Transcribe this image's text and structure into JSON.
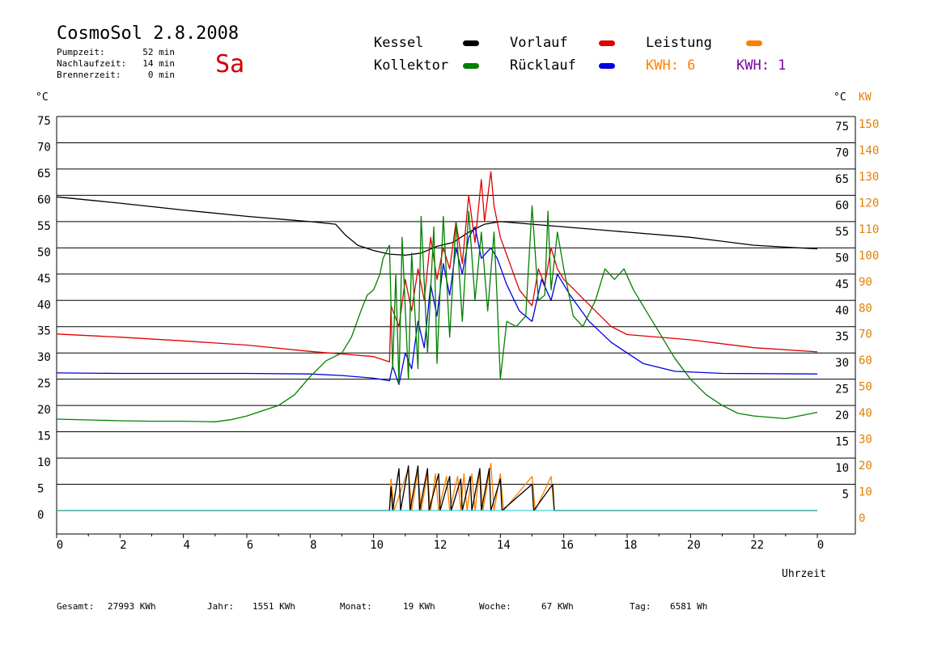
{
  "header": {
    "title": "CosmoSol 2.8.2008",
    "day": "Sa",
    "meta": [
      {
        "label": "Pumpzeit:",
        "value": "52 min"
      },
      {
        "label": "Nachlaufzeit:",
        "value": "14 min"
      },
      {
        "label": "Brennerzeit:",
        "value": "0 min"
      }
    ]
  },
  "legend": {
    "kessel": {
      "label": "Kessel",
      "color": "#000000"
    },
    "vorlauf": {
      "label": "Vorlauf",
      "color": "#e00000"
    },
    "leistung": {
      "label": "Leistung",
      "color": "#ff8000"
    },
    "kollektor": {
      "label": "Kollektor",
      "color": "#008000"
    },
    "ruecklauf": {
      "label": "Rücklauf",
      "color": "#0000e0"
    },
    "kwh_orange": "KWH: 6",
    "kwh_purple": "KWH: 1"
  },
  "units": {
    "left": "°C",
    "right_c": "°C",
    "right_kw": "KW",
    "xlabel": "Uhrzeit"
  },
  "footer": {
    "gesamt_label": "Gesamt:",
    "gesamt_value": "27993 KWh",
    "jahr_label": "Jahr:",
    "jahr_value": "1551 KWh",
    "monat_label": "Monat:",
    "monat_value": "19 KWh",
    "woche_label": "Woche:",
    "woche_value": "67 KWh",
    "tag_label": "Tag:",
    "tag_value": "6581 Wh"
  },
  "chart_data": {
    "type": "line",
    "x_ticks": [
      "0",
      "2",
      "4",
      "6",
      "8",
      "10",
      "12",
      "14",
      "16",
      "18",
      "20",
      "22",
      "0"
    ],
    "xlim": [
      0,
      24
    ],
    "y_left_ticks": [
      0,
      5,
      10,
      15,
      20,
      25,
      30,
      35,
      40,
      45,
      50,
      55,
      60,
      65,
      70,
      75
    ],
    "y_right_c_ticks": [
      5,
      10,
      15,
      20,
      25,
      30,
      35,
      40,
      45,
      50,
      55,
      60,
      65,
      70,
      75
    ],
    "y_right_kw_ticks": [
      0,
      10,
      20,
      30,
      40,
      50,
      60,
      70,
      80,
      90,
      100,
      110,
      120,
      130,
      140,
      150
    ],
    "ylim_c": [
      0,
      75
    ],
    "grid": true,
    "series": [
      {
        "name": "Kessel",
        "color": "#000000",
        "points": [
          [
            0,
            59.7
          ],
          [
            2,
            58.5
          ],
          [
            4,
            57.2
          ],
          [
            6,
            56
          ],
          [
            8,
            55
          ],
          [
            8.8,
            54.5
          ],
          [
            9.1,
            52.5
          ],
          [
            9.5,
            50.5
          ],
          [
            10,
            49.5
          ],
          [
            10.5,
            48.8
          ],
          [
            11,
            48.6
          ],
          [
            11.5,
            49
          ],
          [
            12,
            50.3
          ],
          [
            12.5,
            51
          ],
          [
            13,
            53
          ],
          [
            13.5,
            54.5
          ],
          [
            14,
            55
          ],
          [
            15,
            54.5
          ],
          [
            16,
            54
          ],
          [
            18,
            53
          ],
          [
            20,
            52
          ],
          [
            22,
            50.5
          ],
          [
            24,
            49.8
          ]
        ]
      },
      {
        "name": "Vorlauf",
        "color": "#e00000",
        "points": [
          [
            0,
            33.6
          ],
          [
            2,
            33
          ],
          [
            4,
            32.3
          ],
          [
            6,
            31.5
          ],
          [
            8,
            30.3
          ],
          [
            9,
            29.8
          ],
          [
            10,
            29.3
          ],
          [
            10.5,
            28.3
          ],
          [
            10.55,
            39
          ],
          [
            10.8,
            35
          ],
          [
            11,
            44
          ],
          [
            11.2,
            38
          ],
          [
            11.4,
            46
          ],
          [
            11.6,
            40
          ],
          [
            11.8,
            52
          ],
          [
            12,
            44
          ],
          [
            12.2,
            50
          ],
          [
            12.4,
            46
          ],
          [
            12.6,
            55
          ],
          [
            12.8,
            47
          ],
          [
            13,
            60
          ],
          [
            13.2,
            51
          ],
          [
            13.4,
            63
          ],
          [
            13.5,
            55
          ],
          [
            13.7,
            64.5
          ],
          [
            13.8,
            58
          ],
          [
            14,
            52
          ],
          [
            14.3,
            47
          ],
          [
            14.6,
            42
          ],
          [
            15,
            39
          ],
          [
            15.2,
            46
          ],
          [
            15.4,
            43
          ],
          [
            15.6,
            50
          ],
          [
            15.8,
            46
          ],
          [
            16,
            44
          ],
          [
            16.5,
            41
          ],
          [
            17,
            38
          ],
          [
            17.5,
            35
          ],
          [
            18,
            33.5
          ],
          [
            20,
            32.5
          ],
          [
            22,
            31
          ],
          [
            24,
            30.2
          ]
        ]
      },
      {
        "name": "Rücklauf",
        "color": "#0000e0",
        "points": [
          [
            0,
            26.2
          ],
          [
            2,
            26.1
          ],
          [
            4,
            26.1
          ],
          [
            6,
            26.1
          ],
          [
            8,
            26
          ],
          [
            9,
            25.7
          ],
          [
            10,
            25.2
          ],
          [
            10.5,
            24.7
          ],
          [
            10.6,
            27.5
          ],
          [
            10.8,
            24
          ],
          [
            11,
            30
          ],
          [
            11.2,
            27
          ],
          [
            11.4,
            36
          ],
          [
            11.6,
            31
          ],
          [
            11.8,
            43
          ],
          [
            12,
            37
          ],
          [
            12.2,
            47
          ],
          [
            12.4,
            41
          ],
          [
            12.6,
            50
          ],
          [
            12.8,
            45
          ],
          [
            13,
            52
          ],
          [
            13.2,
            54
          ],
          [
            13.4,
            48
          ],
          [
            13.7,
            50
          ],
          [
            13.9,
            48
          ],
          [
            14.2,
            43
          ],
          [
            14.6,
            38
          ],
          [
            15,
            36
          ],
          [
            15.3,
            44
          ],
          [
            15.6,
            40
          ],
          [
            15.8,
            45
          ],
          [
            16.2,
            41
          ],
          [
            16.8,
            36
          ],
          [
            17.5,
            32
          ],
          [
            18.5,
            28
          ],
          [
            19.5,
            26.5
          ],
          [
            21,
            26.1
          ],
          [
            24,
            26
          ]
        ]
      },
      {
        "name": "Kollektor",
        "color": "#008000",
        "points": [
          [
            0,
            17.4
          ],
          [
            2,
            17.1
          ],
          [
            3,
            17
          ],
          [
            4,
            17
          ],
          [
            5,
            16.9
          ],
          [
            5.5,
            17.3
          ],
          [
            6,
            18
          ],
          [
            6.5,
            19
          ],
          [
            7,
            20
          ],
          [
            7.5,
            22
          ],
          [
            8,
            25.5
          ],
          [
            8.5,
            28.5
          ],
          [
            9,
            30
          ],
          [
            9.3,
            33
          ],
          [
            9.6,
            38
          ],
          [
            9.8,
            41
          ],
          [
            10,
            42
          ],
          [
            10.2,
            45
          ],
          [
            10.3,
            48
          ],
          [
            10.5,
            50.5
          ],
          [
            10.6,
            27
          ],
          [
            10.7,
            45
          ],
          [
            10.8,
            24
          ],
          [
            10.9,
            52
          ],
          [
            11.1,
            25
          ],
          [
            11.2,
            49
          ],
          [
            11.4,
            27
          ],
          [
            11.5,
            56
          ],
          [
            11.7,
            30
          ],
          [
            11.9,
            54
          ],
          [
            12,
            28
          ],
          [
            12.2,
            56
          ],
          [
            12.4,
            33
          ],
          [
            12.6,
            55
          ],
          [
            12.8,
            36
          ],
          [
            13,
            57
          ],
          [
            13.2,
            40
          ],
          [
            13.4,
            53
          ],
          [
            13.6,
            38
          ],
          [
            13.8,
            53
          ],
          [
            13.9,
            40
          ],
          [
            14,
            25
          ],
          [
            14.2,
            36
          ],
          [
            14.5,
            35
          ],
          [
            14.8,
            37
          ],
          [
            15,
            58
          ],
          [
            15.2,
            40
          ],
          [
            15.4,
            41
          ],
          [
            15.5,
            57
          ],
          [
            15.6,
            42
          ],
          [
            15.8,
            53
          ],
          [
            16,
            46
          ],
          [
            16.3,
            37
          ],
          [
            16.6,
            35
          ],
          [
            17,
            40
          ],
          [
            17.3,
            46
          ],
          [
            17.6,
            44
          ],
          [
            17.9,
            46
          ],
          [
            18.2,
            42
          ],
          [
            18.6,
            38
          ],
          [
            19,
            34
          ],
          [
            19.5,
            29
          ],
          [
            20,
            25
          ],
          [
            20.5,
            22
          ],
          [
            21,
            20
          ],
          [
            21.5,
            18.5
          ],
          [
            22,
            18
          ],
          [
            23,
            17.5
          ],
          [
            24,
            18.7
          ]
        ]
      },
      {
        "name": "Leistung",
        "color": "#ff8000",
        "points": [
          [
            0,
            0
          ],
          [
            10.5,
            0
          ],
          [
            10.55,
            6
          ],
          [
            10.65,
            0
          ],
          [
            11.1,
            8
          ],
          [
            11.2,
            0
          ],
          [
            11.4,
            7.5
          ],
          [
            11.5,
            0
          ],
          [
            11.7,
            7
          ],
          [
            11.8,
            0
          ],
          [
            11.95,
            7
          ],
          [
            12.05,
            0
          ],
          [
            12.3,
            6.5
          ],
          [
            12.4,
            0
          ],
          [
            12.65,
            6.5
          ],
          [
            12.75,
            0
          ],
          [
            12.85,
            7
          ],
          [
            12.95,
            0
          ],
          [
            13.1,
            7
          ],
          [
            13.2,
            0
          ],
          [
            13.35,
            8
          ],
          [
            13.45,
            0
          ],
          [
            13.7,
            9
          ],
          [
            13.8,
            0
          ],
          [
            14,
            7
          ],
          [
            14.1,
            0
          ],
          [
            15,
            6.5
          ],
          [
            15.1,
            0
          ],
          [
            15.6,
            6.5
          ],
          [
            15.7,
            0
          ],
          [
            24,
            0
          ]
        ]
      },
      {
        "name": "Kessel-Leistung",
        "color": "#000000",
        "points": [
          [
            0,
            0
          ],
          [
            10.5,
            0
          ],
          [
            10.55,
            4.5
          ],
          [
            10.6,
            0
          ],
          [
            10.8,
            8
          ],
          [
            10.85,
            0
          ],
          [
            11.1,
            8.5
          ],
          [
            11.15,
            0
          ],
          [
            11.4,
            8.5
          ],
          [
            11.45,
            0
          ],
          [
            11.7,
            8
          ],
          [
            11.75,
            0
          ],
          [
            12.05,
            7
          ],
          [
            12.1,
            0
          ],
          [
            12.4,
            6.5
          ],
          [
            12.45,
            0
          ],
          [
            12.75,
            6
          ],
          [
            12.8,
            0
          ],
          [
            13.05,
            6.5
          ],
          [
            13.1,
            0
          ],
          [
            13.35,
            8
          ],
          [
            13.4,
            0
          ],
          [
            13.65,
            8
          ],
          [
            13.7,
            0
          ],
          [
            14,
            6
          ],
          [
            14.05,
            0
          ],
          [
            15,
            5
          ],
          [
            15.05,
            0
          ],
          [
            15.65,
            5
          ],
          [
            15.7,
            0
          ],
          [
            24,
            0
          ]
        ]
      },
      {
        "name": "Pumpe",
        "color": "#40d0d0",
        "points": [
          [
            0,
            0
          ],
          [
            24,
            0
          ]
        ]
      }
    ]
  }
}
